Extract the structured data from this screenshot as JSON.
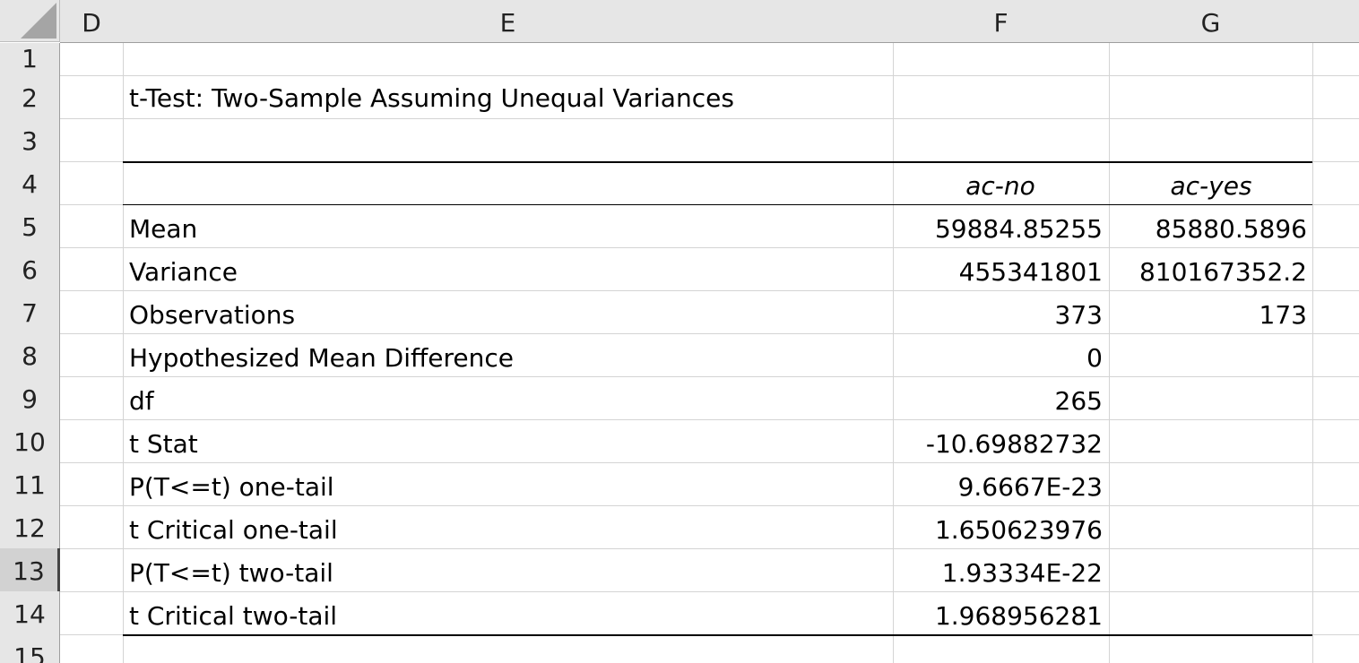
{
  "columns": [
    "D",
    "E",
    "F",
    "G"
  ],
  "rows": [
    "1",
    "2",
    "3",
    "4",
    "5",
    "6",
    "7",
    "8",
    "9",
    "10",
    "11",
    "12",
    "13",
    "14",
    "15"
  ],
  "selected_row": "13",
  "title": "t-Test: Two-Sample Assuming Unequal Variances",
  "series_headers": {
    "f": "ac-no",
    "g": "ac-yes"
  },
  "table": [
    {
      "label": "Mean",
      "f": "59884.85255",
      "g": "85880.5896"
    },
    {
      "label": "Variance",
      "f": "455341801",
      "g": "810167352.2"
    },
    {
      "label": "Observations",
      "f": "373",
      "g": "173"
    },
    {
      "label": "Hypothesized Mean Difference",
      "f": "0",
      "g": ""
    },
    {
      "label": "df",
      "f": "265",
      "g": ""
    },
    {
      "label": "t Stat",
      "f": "-10.69882732",
      "g": ""
    },
    {
      "label": "P(T<=t) one-tail",
      "f": "9.6667E-23",
      "g": ""
    },
    {
      "label": "t Critical one-tail",
      "f": "1.650623976",
      "g": ""
    },
    {
      "label": "P(T<=t) two-tail",
      "f": "1.93334E-22",
      "g": ""
    },
    {
      "label": "t Critical two-tail",
      "f": "1.968956281",
      "g": ""
    }
  ],
  "colors": {
    "header_bg": "#e6e6e6",
    "selected_header_bg": "#d2d2d2",
    "gridline": "#d4d4d4",
    "table_border": "#000000"
  }
}
